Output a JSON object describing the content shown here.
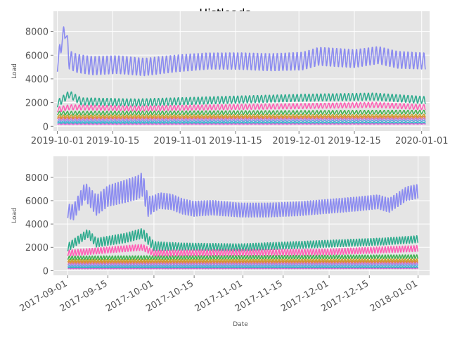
{
  "figure": {
    "title": "Histloads"
  },
  "chart_data": [
    {
      "type": "line",
      "title": "",
      "xlabel": "",
      "ylabel": "Load",
      "xlim": [
        "2019-09-30",
        "2020-01-03"
      ],
      "ylim": [
        -400,
        9700
      ],
      "grid": true,
      "x_ticks": [
        "2019-10-01",
        "2019-10-15",
        "2019-11-01",
        "2019-11-15",
        "2019-12-01",
        "2019-12-15",
        "2020-01-01"
      ],
      "x_tick_labels": [
        "2019-10-01",
        "2019-10-15",
        "2019-11-01",
        "2019-11-15",
        "2019-12-01",
        "2019-12-15",
        "2020-01-01"
      ],
      "y_ticks": [
        0,
        2000,
        4000,
        6000,
        8000
      ],
      "y_tick_labels": [
        "0",
        "2000",
        "4000",
        "6000",
        "8000"
      ],
      "cycle": "daily",
      "colors": [
        "#8b8bf0",
        "#2fab8e",
        "#ff5fb5",
        "#3fb24f",
        "#c9a227",
        "#e67a4d",
        "#b57ae0",
        "#5aa6e0",
        "#20b7c2",
        "#d962d6"
      ],
      "series": [
        {
          "baseline": [
            [
              0,
              5200
            ],
            [
              1,
              7000
            ],
            [
              2,
              8200
            ],
            [
              3,
              5600
            ],
            [
              5,
              5300
            ],
            [
              9,
              5100
            ],
            [
              15,
              5200
            ],
            [
              22,
              5000
            ],
            [
              30,
              5300
            ],
            [
              38,
              5500
            ],
            [
              46,
              5500
            ],
            [
              54,
              5400
            ],
            [
              62,
              5500
            ],
            [
              66,
              5900
            ],
            [
              75,
              5700
            ],
            [
              81,
              6000
            ],
            [
              86,
              5600
            ],
            [
              93,
              5500
            ]
          ],
          "amplitude": [
            [
              0,
              700
            ],
            [
              3,
              900
            ],
            [
              10,
              900
            ],
            [
              40,
              800
            ],
            [
              70,
              900
            ],
            [
              93,
              800
            ]
          ]
        },
        {
          "baseline": [
            [
              0,
              1900
            ],
            [
              3,
              2700
            ],
            [
              6,
              2100
            ],
            [
              20,
              2000
            ],
            [
              40,
              2200
            ],
            [
              62,
              2400
            ],
            [
              80,
              2500
            ],
            [
              93,
              2200
            ]
          ],
          "amplitude": [
            [
              0,
              350
            ],
            [
              93,
              350
            ]
          ]
        },
        {
          "baseline": [
            [
              0,
              1400
            ],
            [
              3,
              1600
            ],
            [
              20,
              1500
            ],
            [
              40,
              1600
            ],
            [
              62,
              1700
            ],
            [
              80,
              1800
            ],
            [
              93,
              1600
            ]
          ],
          "amplitude": [
            [
              0,
              250
            ],
            [
              93,
              250
            ]
          ]
        },
        {
          "baseline": [
            [
              0,
              1100
            ],
            [
              93,
              1200
            ]
          ],
          "amplitude": [
            [
              0,
              180
            ],
            [
              93,
              180
            ]
          ]
        },
        {
          "baseline": [
            [
              0,
              850
            ],
            [
              93,
              900
            ]
          ],
          "amplitude": [
            [
              0,
              120
            ],
            [
              93,
              120
            ]
          ]
        },
        {
          "baseline": [
            [
              0,
              700
            ],
            [
              93,
              750
            ]
          ],
          "amplitude": [
            [
              0,
              90
            ],
            [
              93,
              90
            ]
          ]
        },
        {
          "baseline": [
            [
              0,
              550
            ],
            [
              93,
              600
            ]
          ],
          "amplitude": [
            [
              0,
              80
            ],
            [
              93,
              80
            ]
          ]
        },
        {
          "baseline": [
            [
              0,
              400
            ],
            [
              93,
              450
            ]
          ],
          "amplitude": [
            [
              0,
              60
            ],
            [
              93,
              60
            ]
          ]
        },
        {
          "baseline": [
            [
              0,
              280
            ],
            [
              93,
              300
            ]
          ],
          "amplitude": [
            [
              0,
              40
            ],
            [
              93,
              40
            ]
          ]
        },
        {
          "baseline": [
            [
              0,
              180
            ],
            [
              93,
              200
            ]
          ],
          "amplitude": [
            [
              0,
              30
            ],
            [
              93,
              30
            ]
          ]
        }
      ]
    },
    {
      "type": "line",
      "title": "",
      "xlabel": "Date",
      "ylabel": "Load",
      "xlim": [
        "2017-08-27",
        "2018-01-05"
      ],
      "ylim": [
        -400,
        9800
      ],
      "grid": true,
      "x_ticks": [
        "2017-09-01",
        "2017-09-15",
        "2017-10-01",
        "2017-10-15",
        "2017-11-01",
        "2017-11-15",
        "2017-12-01",
        "2017-12-15",
        "2018-01-01"
      ],
      "x_tick_labels": [
        "2017-09-01",
        "2017-09-15",
        "2017-10-01",
        "2017-10-15",
        "2017-11-01",
        "2017-11-15",
        "2017-12-01",
        "2017-12-15",
        "2018-01-01"
      ],
      "y_ticks": [
        0,
        2000,
        4000,
        6000,
        8000
      ],
      "y_tick_labels": [
        "0",
        "2000",
        "4000",
        "6000",
        "8000"
      ],
      "cycle": "daily",
      "colors": [
        "#8b8bf0",
        "#2fab8e",
        "#ff5fb5",
        "#3fb24f",
        "#c9a227",
        "#e67a4d",
        "#b57ae0",
        "#5aa6e0",
        "#20b7c2",
        "#d962d6"
      ],
      "series": [
        {
          "baseline": [
            [
              0,
              5100
            ],
            [
              2,
              5000
            ],
            [
              6,
              6800
            ],
            [
              10,
              5600
            ],
            [
              14,
              6400
            ],
            [
              20,
              6800
            ],
            [
              24,
              7100
            ],
            [
              26,
              7400
            ],
            [
              28,
              5500
            ],
            [
              32,
              6000
            ],
            [
              36,
              5900
            ],
            [
              40,
              5500
            ],
            [
              44,
              5300
            ],
            [
              50,
              5400
            ],
            [
              60,
              5200
            ],
            [
              70,
              5200
            ],
            [
              80,
              5300
            ],
            [
              90,
              5500
            ],
            [
              100,
              5700
            ],
            [
              108,
              5900
            ],
            [
              112,
              5600
            ],
            [
              118,
              6600
            ],
            [
              122,
              6800
            ]
          ],
          "amplitude": [
            [
              0,
              700
            ],
            [
              10,
              1000
            ],
            [
              26,
              1200
            ],
            [
              30,
              800
            ],
            [
              60,
              700
            ],
            [
              122,
              700
            ]
          ]
        },
        {
          "baseline": [
            [
              0,
              2000
            ],
            [
              7,
              3200
            ],
            [
              10,
              2400
            ],
            [
              20,
              2800
            ],
            [
              26,
              3200
            ],
            [
              30,
              2100
            ],
            [
              60,
              2000
            ],
            [
              90,
              2300
            ],
            [
              110,
              2500
            ],
            [
              122,
              2700
            ]
          ],
          "amplitude": [
            [
              0,
              400
            ],
            [
              26,
              500
            ],
            [
              40,
              350
            ],
            [
              122,
              350
            ]
          ]
        },
        {
          "baseline": [
            [
              0,
              1500
            ],
            [
              26,
              2000
            ],
            [
              30,
              1500
            ],
            [
              90,
              1600
            ],
            [
              122,
              1900
            ]
          ],
          "amplitude": [
            [
              0,
              300
            ],
            [
              122,
              300
            ]
          ]
        },
        {
          "baseline": [
            [
              0,
              1100
            ],
            [
              122,
              1200
            ]
          ],
          "amplitude": [
            [
              0,
              180
            ],
            [
              122,
              180
            ]
          ]
        },
        {
          "baseline": [
            [
              0,
              850
            ],
            [
              122,
              900
            ]
          ],
          "amplitude": [
            [
              0,
              120
            ],
            [
              122,
              120
            ]
          ]
        },
        {
          "baseline": [
            [
              0,
              700
            ],
            [
              122,
              750
            ]
          ],
          "amplitude": [
            [
              0,
              90
            ],
            [
              122,
              90
            ]
          ]
        },
        {
          "baseline": [
            [
              0,
              550
            ],
            [
              122,
              600
            ]
          ],
          "amplitude": [
            [
              0,
              80
            ],
            [
              122,
              80
            ]
          ]
        },
        {
          "baseline": [
            [
              0,
              400
            ],
            [
              122,
              450
            ]
          ],
          "amplitude": [
            [
              0,
              60
            ],
            [
              122,
              60
            ]
          ]
        },
        {
          "baseline": [
            [
              0,
              280
            ],
            [
              122,
              300
            ]
          ],
          "amplitude": [
            [
              0,
              40
            ],
            [
              122,
              40
            ]
          ]
        },
        {
          "baseline": [
            [
              0,
              180
            ],
            [
              122,
              200
            ]
          ],
          "amplitude": [
            [
              0,
              30
            ],
            [
              122,
              30
            ]
          ]
        }
      ]
    }
  ]
}
